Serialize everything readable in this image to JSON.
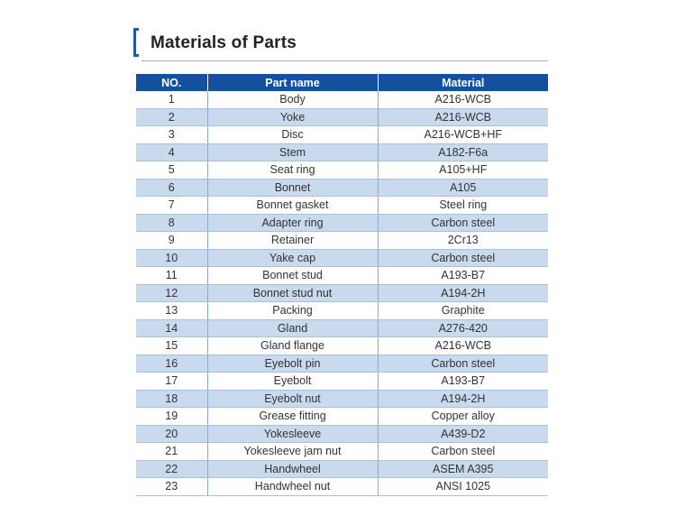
{
  "title": "Materials of Parts",
  "colors": {
    "header": "#1550a0",
    "stripe": "#c9d9ee",
    "accent_rule": "#e3a232",
    "bracket": "#1f5aa6"
  },
  "table": {
    "headers": [
      "NO.",
      "Part name",
      "Material"
    ],
    "rows": [
      [
        "1",
        "Body",
        "A216-WCB"
      ],
      [
        "2",
        "Yoke",
        "A216-WCB"
      ],
      [
        "3",
        "Disc",
        "A216-WCB+HF"
      ],
      [
        "4",
        "Stem",
        "A182-F6a"
      ],
      [
        "5",
        "Seat ring",
        "A105+HF"
      ],
      [
        "6",
        "Bonnet",
        "A105"
      ],
      [
        "7",
        "Bonnet gasket",
        "Steel ring"
      ],
      [
        "8",
        "Adapter ring",
        "Carbon steel"
      ],
      [
        "9",
        "Retainer",
        "2Cr13"
      ],
      [
        "10",
        "Yake cap",
        "Carbon steel"
      ],
      [
        "11",
        "Bonnet stud",
        "A193-B7"
      ],
      [
        "12",
        "Bonnet stud nut",
        "A194-2H"
      ],
      [
        "13",
        "Packing",
        "Graphite"
      ],
      [
        "14",
        "Gland",
        "A276-420"
      ],
      [
        "15",
        "Gland flange",
        "A216-WCB"
      ],
      [
        "16",
        "Eyebolt pin",
        "Carbon steel"
      ],
      [
        "17",
        "Eyebolt",
        "A193-B7"
      ],
      [
        "18",
        "Eyebolt nut",
        "A194-2H"
      ],
      [
        "19",
        "Grease fitting",
        "Copper alloy"
      ],
      [
        "20",
        "Yokesleeve",
        "A439-D2"
      ],
      [
        "21",
        "Yokesleeve jam nut",
        "Carbon steel"
      ],
      [
        "22",
        "Handwheel",
        "ASEM A395"
      ],
      [
        "23",
        "Handwheel nut",
        "ANSI 1025"
      ]
    ]
  }
}
